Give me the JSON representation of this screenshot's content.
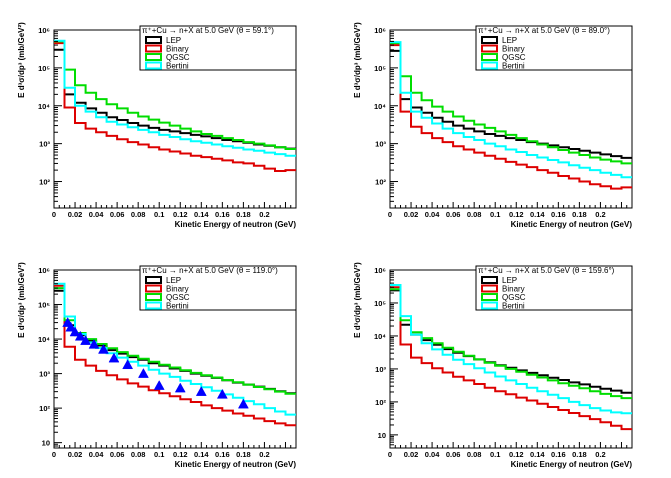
{
  "chart_data": [
    {
      "type": "line",
      "title": "π⁺+Cu → n+X at 5.0 GeV (θ = 59.1°)",
      "xlabel": "Kinetic Energy of neutron (GeV)",
      "ylabel": "E d³σ/dp³ (mb/GeV²)",
      "xlim": [
        0,
        0.23
      ],
      "ylim": [
        20,
        1000000
      ],
      "yscale": "log",
      "xticks": [
        "0",
        "0.02",
        "0.04",
        "0.06",
        "0.08",
        "0.1",
        "0.12",
        "0.14",
        "0.16",
        "0.18",
        "0.2"
      ],
      "yticks": [
        "10²",
        "10³",
        "10⁴",
        "10⁵",
        "10⁶"
      ],
      "legend_placement": "top-right",
      "bin_edges": [
        0,
        0.01,
        0.02,
        0.03,
        0.04,
        0.05,
        0.06,
        0.07,
        0.08,
        0.09,
        0.1,
        0.11,
        0.12,
        0.13,
        0.14,
        0.15,
        0.16,
        0.17,
        0.18,
        0.19,
        0.2,
        0.21,
        0.22,
        0.23
      ],
      "series": [
        {
          "name": "LEP",
          "color": "#000000",
          "values": [
            300000,
            20000,
            12000,
            8500,
            6500,
            5000,
            4200,
            3500,
            3000,
            2600,
            2300,
            2100,
            1900,
            1700,
            1550,
            1400,
            1250,
            1150,
            1050,
            950,
            880,
            800,
            740
          ]
        },
        {
          "name": "Binary",
          "color": "#dd0000",
          "values": [
            450000,
            9000,
            3500,
            2500,
            2000,
            1600,
            1300,
            1100,
            950,
            800,
            700,
            620,
            550,
            480,
            440,
            400,
            360,
            320,
            300,
            260,
            220,
            190,
            200
          ]
        },
        {
          "name": "QGSC",
          "color": "#00dd00",
          "values": [
            500000,
            90000,
            35000,
            22000,
            15000,
            11000,
            8500,
            6500,
            5200,
            4300,
            3600,
            3000,
            2500,
            2100,
            1800,
            1600,
            1400,
            1250,
            1100,
            1000,
            900,
            800,
            720
          ]
        },
        {
          "name": "Bertini",
          "color": "#00ffff",
          "values": [
            520000,
            30000,
            10000,
            7000,
            5000,
            3800,
            3200,
            2700,
            2300,
            2000,
            1700,
            1500,
            1300,
            1150,
            1050,
            950,
            850,
            780,
            700,
            650,
            580,
            530,
            480
          ]
        }
      ]
    },
    {
      "type": "line",
      "title": "π⁺+Cu → n+X at 5.0 GeV (θ = 89.0°)",
      "xlabel": "Kinetic Energy of neutron (GeV)",
      "ylabel": "E d³σ/dp³ (mb/GeV²)",
      "xlim": [
        0,
        0.23
      ],
      "ylim": [
        20,
        1000000
      ],
      "yscale": "log",
      "xticks": [
        "0",
        "0.02",
        "0.04",
        "0.06",
        "0.08",
        "0.1",
        "0.12",
        "0.14",
        "0.16",
        "0.18",
        "0.2"
      ],
      "yticks": [
        "10²",
        "10³",
        "10⁴",
        "10⁵",
        "10⁶"
      ],
      "legend_placement": "top-right",
      "bin_edges": [
        0,
        0.01,
        0.02,
        0.03,
        0.04,
        0.05,
        0.06,
        0.07,
        0.08,
        0.09,
        0.1,
        0.11,
        0.12,
        0.13,
        0.14,
        0.15,
        0.16,
        0.17,
        0.18,
        0.19,
        0.2,
        0.21,
        0.22,
        0.23
      ],
      "series": [
        {
          "name": "LEP",
          "color": "#000000",
          "values": [
            280000,
            15000,
            9000,
            6500,
            4800,
            3800,
            3000,
            2500,
            2100,
            1800,
            1600,
            1400,
            1250,
            1100,
            1000,
            900,
            800,
            720,
            650,
            580,
            520,
            470,
            420
          ]
        },
        {
          "name": "Binary",
          "color": "#dd0000",
          "values": [
            400000,
            7000,
            2800,
            1900,
            1400,
            1100,
            850,
            700,
            580,
            480,
            400,
            330,
            280,
            240,
            200,
            170,
            140,
            120,
            100,
            85,
            75,
            65,
            70
          ]
        },
        {
          "name": "QGSC",
          "color": "#00dd00",
          "values": [
            450000,
            60000,
            22000,
            14000,
            9500,
            7000,
            5200,
            4000,
            3200,
            2600,
            2100,
            1700,
            1400,
            1150,
            950,
            800,
            680,
            580,
            500,
            430,
            380,
            340,
            300
          ]
        },
        {
          "name": "Bertini",
          "color": "#00ffff",
          "values": [
            480000,
            22000,
            7000,
            4800,
            3400,
            2500,
            1900,
            1500,
            1250,
            1000,
            850,
            700,
            600,
            500,
            430,
            370,
            320,
            270,
            230,
            200,
            170,
            150,
            130
          ]
        }
      ]
    },
    {
      "type": "line",
      "title": "π⁺+Cu → n+X at 5.0 GeV (θ = 119.0°)",
      "xlabel": "Kinetic Energy of neutron (GeV)",
      "ylabel": "E d³σ/dp³ (mb/GeV²)",
      "xlim": [
        0,
        0.23
      ],
      "ylim": [
        7,
        1000000
      ],
      "yscale": "log",
      "xticks": [
        "0",
        "0.02",
        "0.04",
        "0.06",
        "0.08",
        "0.1",
        "0.12",
        "0.14",
        "0.16",
        "0.18",
        "0.2"
      ],
      "yticks": [
        "10",
        "10²",
        "10³",
        "10⁴",
        "10⁵",
        "10⁶"
      ],
      "legend_placement": "top-right",
      "bin_edges": [
        0,
        0.01,
        0.02,
        0.03,
        0.04,
        0.05,
        0.06,
        0.07,
        0.08,
        0.09,
        0.1,
        0.11,
        0.12,
        0.13,
        0.14,
        0.15,
        0.16,
        0.17,
        0.18,
        0.19,
        0.2,
        0.21,
        0.22,
        0.23
      ],
      "series": [
        {
          "name": "LEP",
          "color": "#000000",
          "values": [
            250000,
            25000,
            13000,
            9000,
            6500,
            4800,
            3800,
            3000,
            2500,
            2000,
            1700,
            1400,
            1200,
            1000,
            870,
            750,
            640,
            550,
            480,
            420,
            360,
            310,
            270
          ]
        },
        {
          "name": "Binary",
          "color": "#dd0000",
          "values": [
            350000,
            6000,
            2500,
            1700,
            1200,
            900,
            680,
            520,
            420,
            330,
            270,
            220,
            180,
            150,
            120,
            100,
            85,
            70,
            60,
            50,
            42,
            36,
            32
          ]
        },
        {
          "name": "QGSC",
          "color": "#00dd00",
          "values": [
            300000,
            35000,
            15000,
            10000,
            7200,
            5400,
            4200,
            3300,
            2700,
            2200,
            1800,
            1500,
            1250,
            1050,
            900,
            770,
            650,
            560,
            480,
            410,
            350,
            300,
            260
          ]
        },
        {
          "name": "Bertini",
          "color": "#00ffff",
          "values": [
            400000,
            45000,
            14000,
            8000,
            5500,
            3900,
            2900,
            2200,
            1700,
            1300,
            1000,
            800,
            620,
            500,
            400,
            320,
            250,
            200,
            160,
            130,
            100,
            80,
            65
          ]
        }
      ],
      "points": {
        "name": "data",
        "color": "#0000ff",
        "x": [
          0.013,
          0.016,
          0.02,
          0.025,
          0.03,
          0.038,
          0.047,
          0.057,
          0.07,
          0.085,
          0.1,
          0.12,
          0.14,
          0.16,
          0.18
        ],
        "y": [
          30000,
          22000,
          16000,
          12000,
          9000,
          7000,
          5000,
          2800,
          1800,
          1000,
          450,
          380,
          300,
          250,
          130
        ]
      }
    },
    {
      "type": "line",
      "title": "π⁺+Cu → n+X at 5.0 GeV (θ = 159.6°)",
      "xlabel": "Kinetic Energy of neutron (GeV)",
      "ylabel": "E d³σ/dp³ (mb/GeV²)",
      "xlim": [
        0,
        0.23
      ],
      "ylim": [
        4,
        1000000
      ],
      "yscale": "log",
      "xticks": [
        "0",
        "0.02",
        "0.04",
        "0.06",
        "0.08",
        "0.1",
        "0.12",
        "0.14",
        "0.16",
        "0.18",
        "0.2"
      ],
      "yticks": [
        "10",
        "10²",
        "10³",
        "10⁴",
        "10⁵",
        "10⁶"
      ],
      "legend_placement": "top-right",
      "bin_edges": [
        0,
        0.01,
        0.02,
        0.03,
        0.04,
        0.05,
        0.06,
        0.07,
        0.08,
        0.09,
        0.1,
        0.11,
        0.12,
        0.13,
        0.14,
        0.15,
        0.16,
        0.17,
        0.18,
        0.19,
        0.2,
        0.21,
        0.22,
        0.23
      ],
      "series": [
        {
          "name": "LEP",
          "color": "#000000",
          "values": [
            240000,
            22000,
            11000,
            7500,
            5400,
            4000,
            3100,
            2450,
            1950,
            1600,
            1300,
            1080,
            900,
            760,
            640,
            540,
            460,
            390,
            340,
            290,
            250,
            220,
            190
          ]
        },
        {
          "name": "Binary",
          "color": "#dd0000",
          "values": [
            300000,
            5500,
            2200,
            1500,
            1050,
            780,
            580,
            450,
            350,
            270,
            210,
            170,
            135,
            110,
            88,
            70,
            57,
            46,
            37,
            30,
            24,
            19,
            15
          ]
        },
        {
          "name": "QGSC",
          "color": "#00dd00",
          "values": [
            260000,
            30000,
            13000,
            8600,
            6000,
            4400,
            3300,
            2500,
            1950,
            1550,
            1250,
            1000,
            820,
            670,
            550,
            450,
            370,
            310,
            260,
            210,
            175,
            150,
            130
          ]
        },
        {
          "name": "Bertini",
          "color": "#00ffff",
          "values": [
            350000,
            40000,
            11000,
            6000,
            3900,
            2700,
            1900,
            1400,
            1050,
            780,
            590,
            450,
            350,
            270,
            210,
            165,
            130,
            100,
            80,
            65,
            55,
            48,
            45
          ]
        }
      ]
    }
  ]
}
